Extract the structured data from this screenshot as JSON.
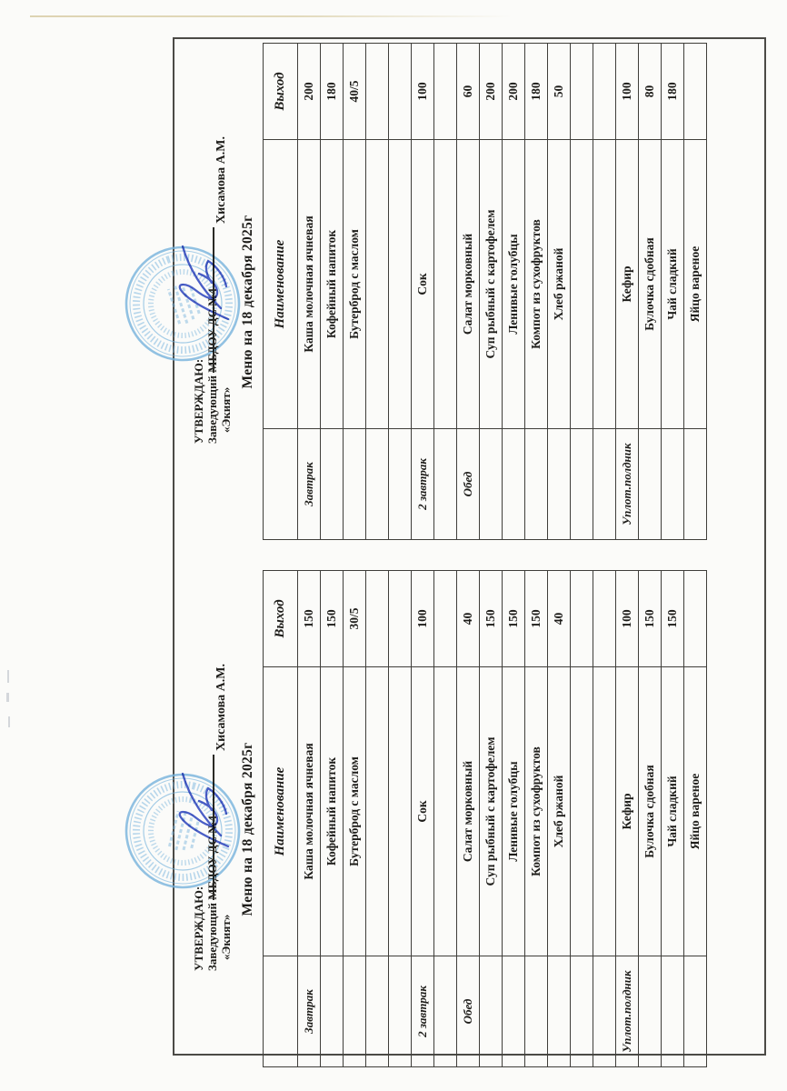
{
  "document_type": "scanned-approved-menu",
  "colors": {
    "paper": "#fbfbf9",
    "ink": "#1d1c19",
    "table_line": "#3f3e3a",
    "frame_line": "#4b4a46",
    "stamp_blue": "#74b2dc",
    "signature_ink": "#4a5ec6",
    "artifact_tan": "#d8cda6"
  },
  "menus": [
    {
      "position": "top-of-scan",
      "approve": {
        "line1": "УТВЕРЖДАЮ:",
        "line2": "Заведующий МБДОУ ДС №4",
        "line3": "«Экият»",
        "signer": "Хисамова А.М."
      },
      "title": "Меню на 18 декабря 2025г",
      "table": {
        "headers": {
          "meal": "",
          "name": "Наименование",
          "out": "Выход"
        },
        "rows": [
          {
            "meal": "Завтрак",
            "dish": "Каша молочная ячневая",
            "out": "200"
          },
          {
            "meal": "",
            "dish": "Кофейный напиток",
            "out": "180"
          },
          {
            "meal": "",
            "dish": "Бутерброд с маслом",
            "out": "40/5"
          },
          {
            "meal": "",
            "dish": "",
            "out": ""
          },
          {
            "meal": "",
            "dish": "",
            "out": ""
          },
          {
            "meal": "2 завтрак",
            "dish": "Сок",
            "out": "100"
          },
          {
            "meal": "",
            "dish": "",
            "out": ""
          },
          {
            "meal": "Обед",
            "dish": "Салат морковный",
            "out": "60"
          },
          {
            "meal": "",
            "dish": "Суп рыбный с картофелем",
            "out": "200"
          },
          {
            "meal": "",
            "dish": "Ленивые голубцы",
            "out": "200"
          },
          {
            "meal": "",
            "dish": "Компот из сухофруктов",
            "out": "180"
          },
          {
            "meal": "",
            "dish": "Хлеб ржаной",
            "out": "50"
          },
          {
            "meal": "",
            "dish": "",
            "out": ""
          },
          {
            "meal": "",
            "dish": "",
            "out": ""
          },
          {
            "meal": "Уплот.полдник",
            "dish": "Кефир",
            "out": "100"
          },
          {
            "meal": "",
            "dish": "Булочка сдобная",
            "out": "80"
          },
          {
            "meal": "",
            "dish": "Чай сладкий",
            "out": "180"
          },
          {
            "meal": "",
            "dish": "Яйцо вареное",
            "out": ""
          }
        ]
      }
    },
    {
      "position": "bottom-of-scan",
      "approve": {
        "line1": "УТВЕРЖДАЮ:",
        "line2": "Заведующий МБДОУ ДС №4",
        "line3": "«Экият»",
        "signer": "Хисамова А.М."
      },
      "title": "Меню на 18 декабря 2025г",
      "table": {
        "headers": {
          "meal": "",
          "name": "Наименование",
          "out": "Выход"
        },
        "rows": [
          {
            "meal": "Завтрак",
            "dish": "Каша молочная ячневая",
            "out": "150"
          },
          {
            "meal": "",
            "dish": "Кофейный напиток",
            "out": "150"
          },
          {
            "meal": "",
            "dish": "Бутерброд с маслом",
            "out": "30/5"
          },
          {
            "meal": "",
            "dish": "",
            "out": ""
          },
          {
            "meal": "",
            "dish": "",
            "out": ""
          },
          {
            "meal": "2 завтрак",
            "dish": "Сок",
            "out": "100"
          },
          {
            "meal": "",
            "dish": "",
            "out": ""
          },
          {
            "meal": "Обед",
            "dish": "Салат морковный",
            "out": "40"
          },
          {
            "meal": "",
            "dish": "Суп рыбный с картофелем",
            "out": "150"
          },
          {
            "meal": "",
            "dish": "Ленивые голубцы",
            "out": "150"
          },
          {
            "meal": "",
            "dish": "Компот из сухофруктов",
            "out": "150"
          },
          {
            "meal": "",
            "dish": "Хлеб ржаной",
            "out": "40"
          },
          {
            "meal": "",
            "dish": "",
            "out": ""
          },
          {
            "meal": "",
            "dish": "",
            "out": ""
          },
          {
            "meal": "Уплот.полдник",
            "dish": "Кефир",
            "out": "100"
          },
          {
            "meal": "",
            "dish": "Булочка сдобная",
            "out": "150"
          },
          {
            "meal": "",
            "dish": "Чай сладкий",
            "out": "150"
          },
          {
            "meal": "",
            "dish": "Яйцо вареное",
            "out": ""
          }
        ]
      }
    }
  ]
}
